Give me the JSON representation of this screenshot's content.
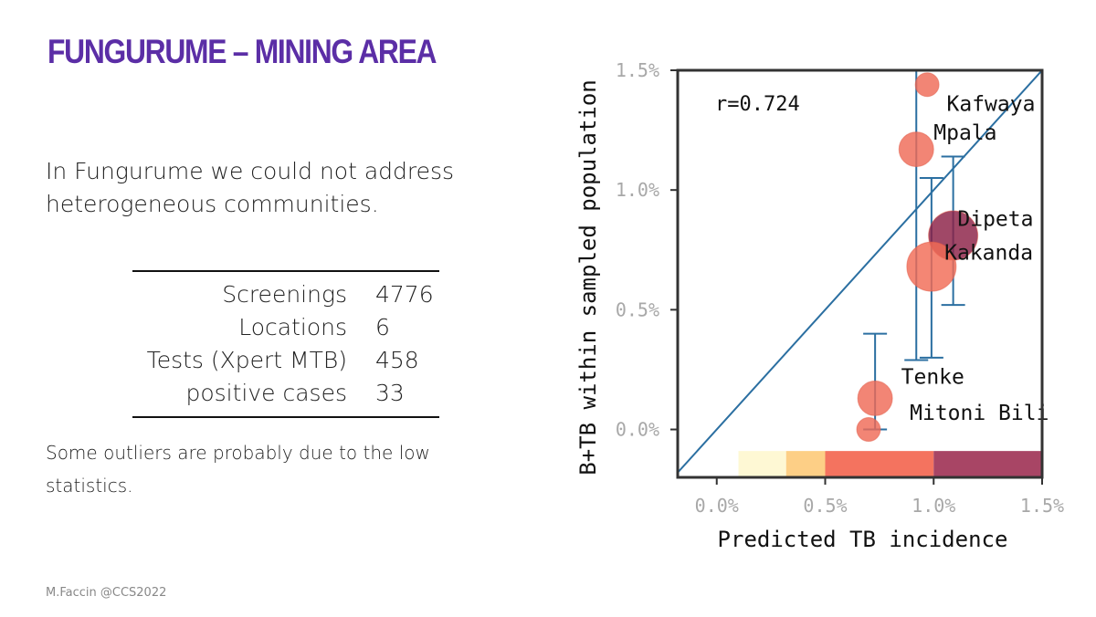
{
  "slide": {
    "title": "FUNGURUME – MINING AREA",
    "intro": "In Fungurume we could not address heterogeneous communities.",
    "stats": [
      {
        "label": "Screenings",
        "value": "4776"
      },
      {
        "label": "Locations",
        "value": "6"
      },
      {
        "label": "Tests (Xpert MTB)",
        "value": "458"
      },
      {
        "label": "positive cases",
        "value": "33"
      }
    ],
    "note": "Some outliers are probably due to the low statistics.",
    "footer": "M.Faccin @CCS2022"
  },
  "chart_data": {
    "type": "scatter",
    "xlabel": "Predicted TB incidence",
    "ylabel": "B+TB within sampled population",
    "xlim": [
      -0.18,
      1.5
    ],
    "ylim": [
      -0.2,
      1.5
    ],
    "xticks": [
      0.0,
      0.5,
      1.0,
      1.5
    ],
    "yticks": [
      0.0,
      0.5,
      1.0,
      1.5
    ],
    "xtick_labels": [
      "0.0%",
      "0.5%",
      "1.0%",
      "1.5%"
    ],
    "ytick_labels": [
      "0.0%",
      "0.5%",
      "1.0%",
      "1.5%"
    ],
    "annotation": "r=0.724",
    "diagonal": true,
    "points": [
      {
        "name": "Kafwaya",
        "x": 0.97,
        "y": 1.44,
        "size": "small",
        "color": "#ef6a57",
        "err_low": null,
        "err_high": null
      },
      {
        "name": "Mpala",
        "x": 0.92,
        "y": 1.17,
        "size": "medium",
        "color": "#ef6a57",
        "err_low": 0.29,
        "err_high": 1.5
      },
      {
        "name": "Dipeta",
        "x": 1.09,
        "y": 0.81,
        "size": "large",
        "color": "#8b2045",
        "err_low": 0.52,
        "err_high": 1.14
      },
      {
        "name": "Kakanda",
        "x": 0.99,
        "y": 0.68,
        "size": "large",
        "color": "#f26b55",
        "err_low": 0.3,
        "err_high": 1.05
      },
      {
        "name": "Tenke",
        "x": 0.73,
        "y": 0.13,
        "size": "medium",
        "color": "#ef6a57",
        "err_low": 0.0,
        "err_high": 0.4
      },
      {
        "name": "Mitoni Bili",
        "x": 0.7,
        "y": 0.0,
        "size": "small",
        "color": "#ef6a57",
        "err_low": null,
        "err_high": null
      }
    ],
    "color_bar": [
      {
        "x0": 0.1,
        "x1": 0.32,
        "color": "#fef8d4"
      },
      {
        "x0": 0.32,
        "x1": 0.5,
        "color": "#fdcf86"
      },
      {
        "x0": 0.5,
        "x1": 1.0,
        "color": "#f4735f"
      },
      {
        "x0": 1.0,
        "x1": 1.5,
        "color": "#a84565"
      }
    ],
    "colors": {
      "axis": "#333333",
      "line": "#2b6fa1",
      "tick_label": "#a8a8a8"
    }
  }
}
